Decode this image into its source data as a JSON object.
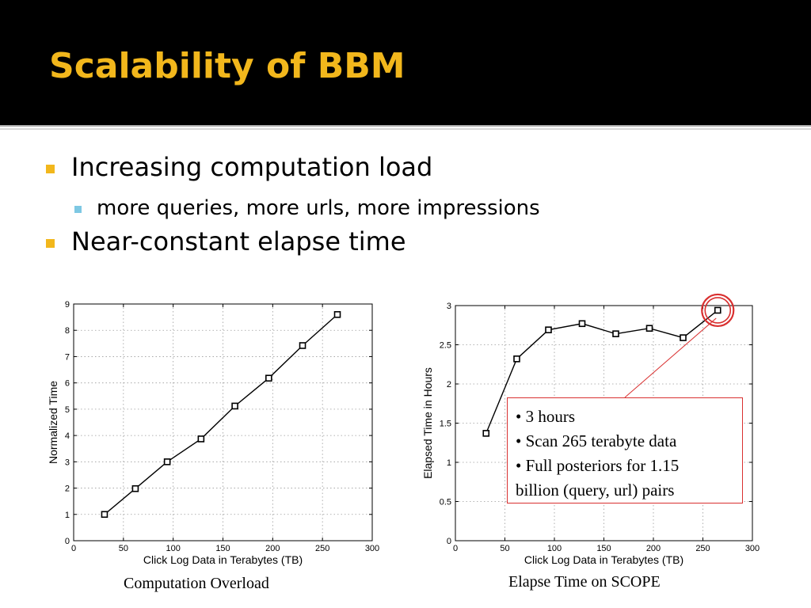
{
  "slide": {
    "title": "Scalability of BBM",
    "bullets": [
      {
        "level": 1,
        "text": "Increasing computation load"
      },
      {
        "level": 2,
        "text": "more queries, more urls, more impressions"
      },
      {
        "level": 1,
        "text": "Near-constant elapse time"
      }
    ],
    "colors": {
      "header_bg": "#000000",
      "title": "#f2b71c",
      "bullet_l1": "#f2b71c",
      "bullet_l2": "#7ec8e3",
      "highlight": "#d93030"
    }
  },
  "chart_data": [
    {
      "type": "line",
      "caption": "Computation Overload",
      "xlabel": "Click Log Data in Terabytes (TB)",
      "ylabel": "Normalized Time",
      "xlim": [
        0,
        300
      ],
      "ylim": [
        0,
        9
      ],
      "xticks": [
        0,
        50,
        100,
        150,
        200,
        250,
        300
      ],
      "yticks": [
        0,
        1,
        2,
        3,
        4,
        5,
        6,
        7,
        8,
        9
      ],
      "grid": true,
      "marker": "square",
      "series": [
        {
          "x": [
            31,
            62,
            94,
            128,
            162,
            196,
            230,
            265
          ],
          "values": [
            1.0,
            1.98,
            3.0,
            3.87,
            5.12,
            6.18,
            7.42,
            8.6
          ]
        }
      ]
    },
    {
      "type": "line",
      "caption": "Elapse Time on SCOPE",
      "xlabel": "Click Log Data in Terabytes (TB)",
      "ylabel": "Elapsed Time in Hours",
      "xlim": [
        0,
        300
      ],
      "ylim": [
        0,
        3
      ],
      "xticks": [
        0,
        50,
        100,
        150,
        200,
        250,
        300
      ],
      "yticks": [
        0,
        0.5,
        1,
        1.5,
        2,
        2.5,
        3
      ],
      "grid": true,
      "marker": "square",
      "series": [
        {
          "x": [
            31,
            62,
            94,
            128,
            162,
            196,
            230,
            265
          ],
          "values": [
            1.37,
            2.32,
            2.69,
            2.77,
            2.64,
            2.71,
            2.59,
            2.94
          ]
        }
      ],
      "highlight_point_index": 7,
      "annotation": [
        "• 3 hours",
        "• Scan 265 terabyte data",
        "• Full posteriors for 1.15",
        "billion (query, url) pairs"
      ]
    }
  ]
}
